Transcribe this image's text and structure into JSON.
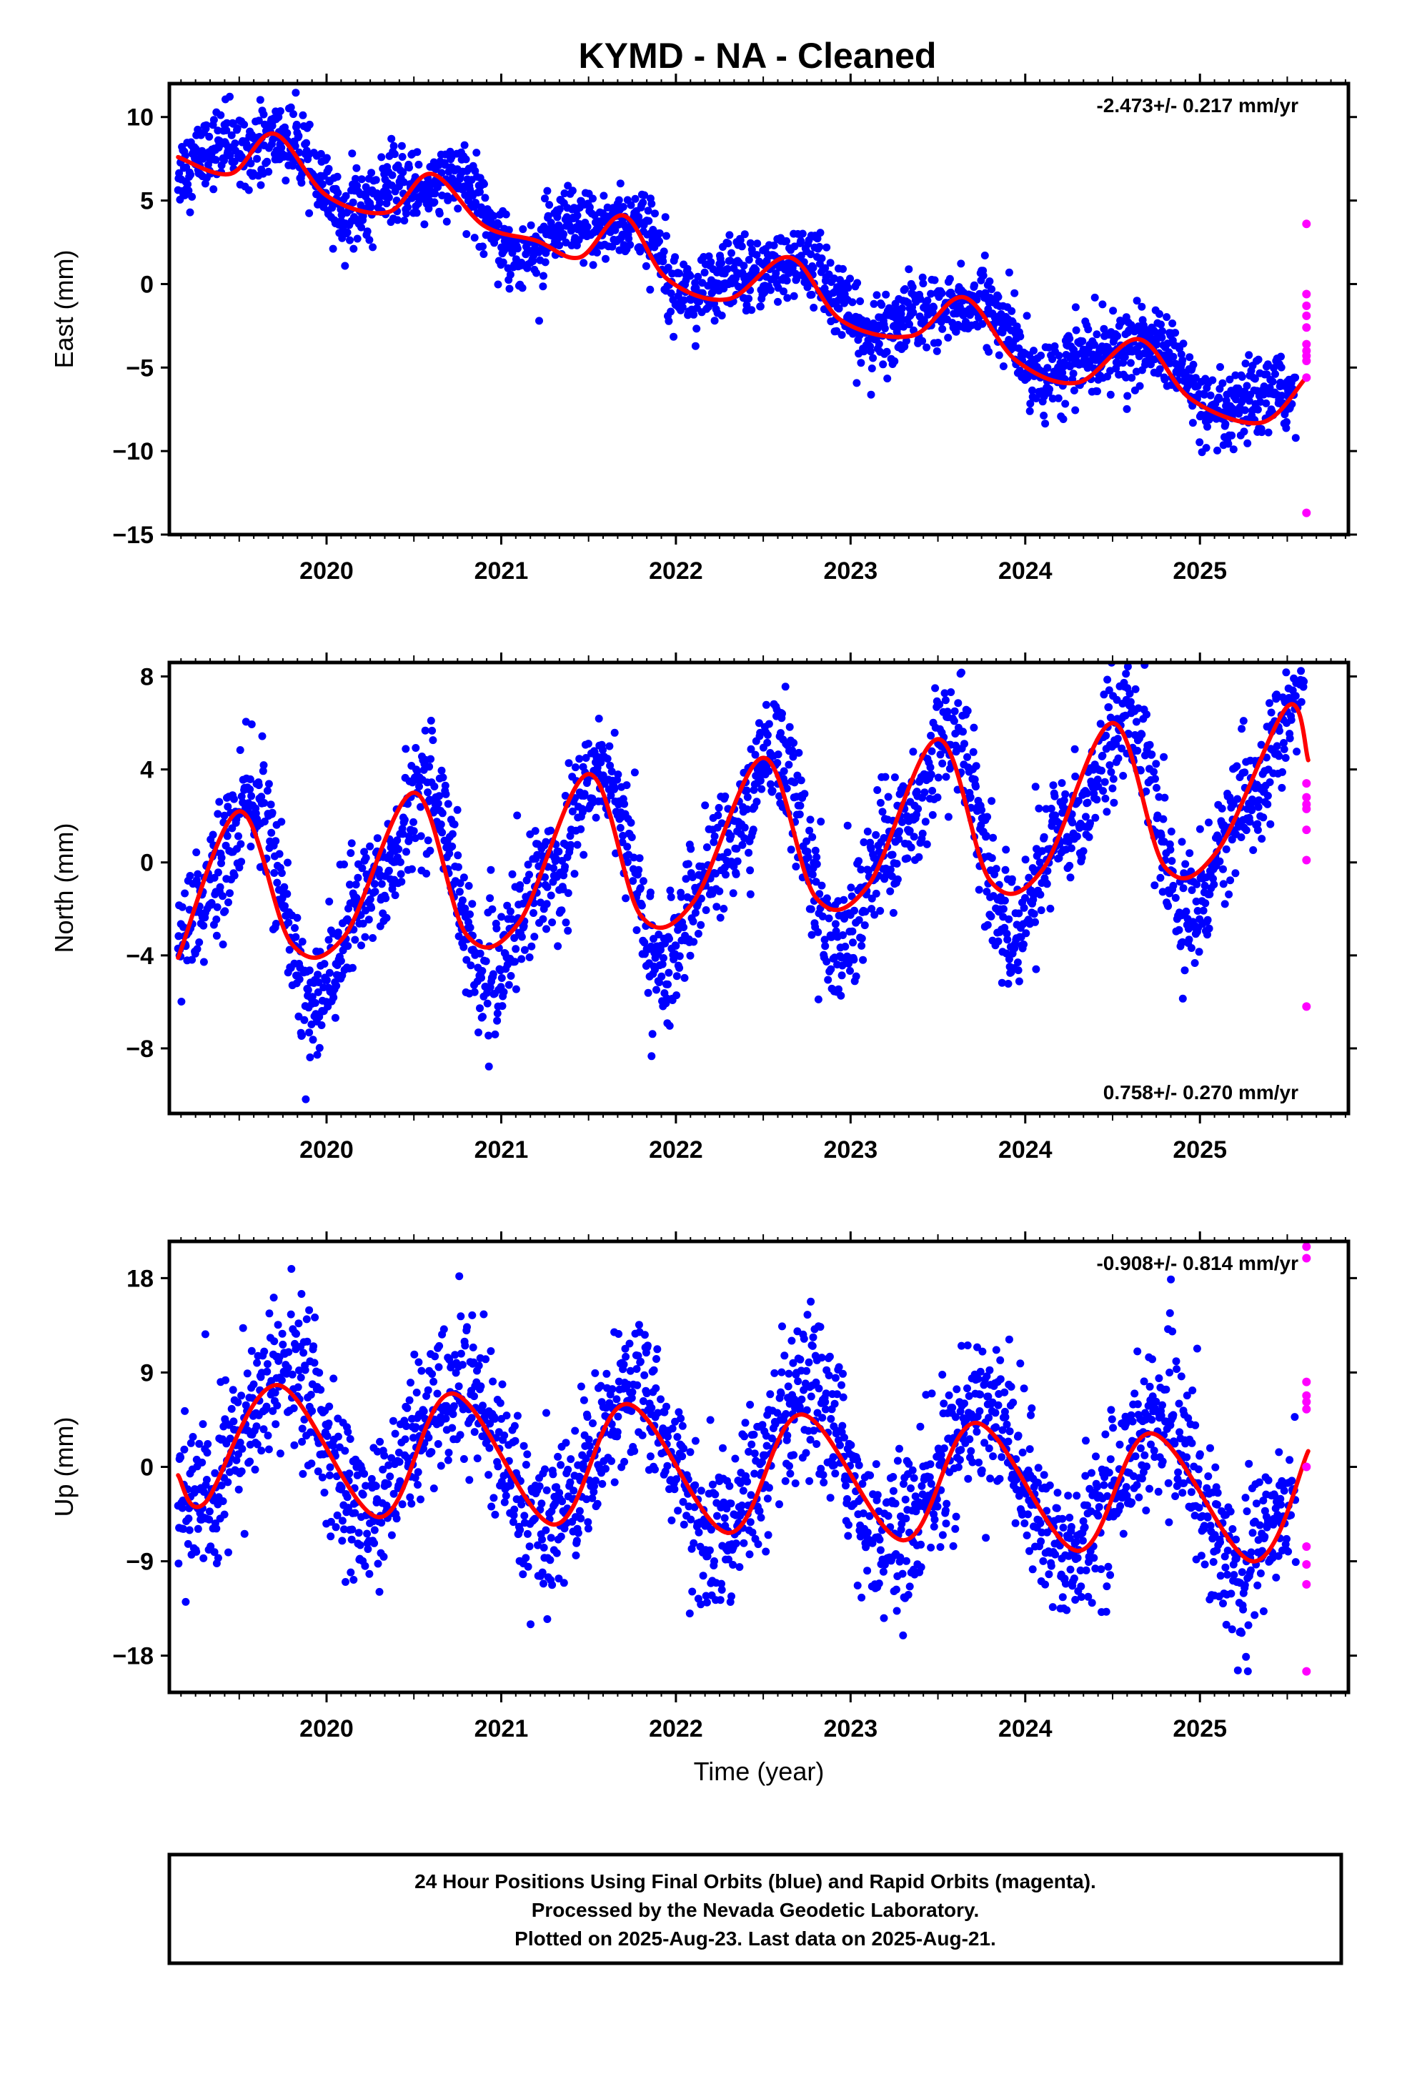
{
  "title": "KYMD  - NA - Cleaned",
  "footer": {
    "line1": "24 Hour Positions Using Final Orbits (blue) and Rapid Orbits (magenta).",
    "line2": "Processed by the Nevada Geodetic Laboratory.",
    "line3": "Plotted on 2025-Aug-23. Last data on 2025-Aug-21."
  },
  "colors": {
    "final": "#0000ff",
    "rapid": "#ff00ff",
    "fit": "#ff0000"
  },
  "chart_data": [
    {
      "type": "scatter",
      "panel": "east",
      "ylabel": "East (mm)",
      "xlabel": "",
      "rate_label": "-2.473+/- 0.217 mm/yr",
      "rate_position": "top-right",
      "xlim": [
        2019.1,
        2025.85
      ],
      "ylim": [
        -15,
        12
      ],
      "xticks": [
        "2020",
        "2021",
        "2022",
        "2023",
        "2024",
        "2025"
      ],
      "yticks": [
        10,
        5,
        0,
        -5,
        -10,
        -15
      ],
      "ytick_labels": [
        "10",
        "5",
        "0",
        "−5",
        "−10",
        "−15"
      ],
      "model": {
        "trend": -2.473,
        "ref_year": 2022.4,
        "offset": 0.55,
        "amp1": 1.5,
        "phase1": 2019.65,
        "amp2": 0.55,
        "phase2": 2019.7,
        "noise": 1.1
      },
      "series": [
        {
          "name": "Final Orbits",
          "color": "#0000ff",
          "x_range": [
            2019.15,
            2025.55
          ]
        },
        {
          "name": "Rapid Orbits",
          "color": "#ff00ff",
          "x": [
            2025.61,
            2025.61,
            2025.61,
            2025.61,
            2025.61,
            2025.61,
            2025.61,
            2025.61,
            2025.61,
            2025.61,
            2025.61
          ],
          "y": [
            3.6,
            -0.6,
            -1.3,
            -1.9,
            -2.6,
            -3.6,
            -4.0,
            -4.3,
            -4.6,
            -5.6,
            -13.7
          ]
        },
        {
          "name": "Fit",
          "color": "#ff0000",
          "x": [
            2019.15,
            2019.45,
            2019.7,
            2020.0,
            2020.35,
            2020.6,
            2020.9,
            2021.2,
            2021.45,
            2021.7,
            2021.95,
            2022.3,
            2022.65,
            2022.95,
            2023.35,
            2023.65,
            2023.95,
            2024.3,
            2024.65,
            2024.95,
            2025.35,
            2025.6
          ],
          "y": [
            7.6,
            6.6,
            9.0,
            5.3,
            4.3,
            6.6,
            3.5,
            2.6,
            1.6,
            4.1,
            0.3,
            -0.9,
            1.6,
            -2.2,
            -3.1,
            -0.8,
            -4.6,
            -5.9,
            -3.3,
            -6.9,
            -8.3,
            -5.7
          ]
        }
      ]
    },
    {
      "type": "scatter",
      "panel": "north",
      "ylabel": "North (mm)",
      "xlabel": "",
      "rate_label": "0.758+/- 0.270 mm/yr",
      "rate_position": "bottom-right",
      "xlim": [
        2019.1,
        2025.85
      ],
      "ylim": [
        -10.8,
        8.6
      ],
      "xticks": [
        "2020",
        "2021",
        "2022",
        "2023",
        "2024",
        "2025"
      ],
      "yticks": [
        8,
        4,
        0,
        -4,
        -8
      ],
      "ytick_labels": [
        "8",
        "4",
        "0",
        "−4",
        "−8"
      ],
      "model": {
        "trend": 0.758,
        "ref_year": 2022.4,
        "offset": 0.3,
        "amp1": 3.8,
        "phase1": 2019.5,
        "amp2": 1.4,
        "phase2": 2019.5,
        "noise": 1.3
      },
      "series": [
        {
          "name": "Final Orbits",
          "color": "#0000ff",
          "x_range": [
            2019.15,
            2025.6
          ]
        },
        {
          "name": "Rapid Orbits",
          "color": "#ff00ff",
          "x": [
            2025.61,
            2025.61,
            2025.61,
            2025.61,
            2025.61,
            2025.61,
            2025.61
          ],
          "y": [
            3.4,
            2.8,
            2.5,
            2.3,
            1.4,
            0.1,
            -6.2
          ]
        },
        {
          "name": "Fit",
          "color": "#ff0000",
          "x": [
            2019.15,
            2019.5,
            2019.8,
            2020.1,
            2020.5,
            2020.8,
            2021.1,
            2021.5,
            2021.8,
            2022.1,
            2022.5,
            2022.8,
            2023.1,
            2023.5,
            2023.8,
            2024.1,
            2024.5,
            2024.8,
            2025.1,
            2025.5,
            2025.62
          ],
          "y": [
            -4.1,
            2.2,
            -3.5,
            -3.2,
            3.0,
            -3.1,
            -2.6,
            3.8,
            -2.3,
            -1.7,
            4.5,
            -1.5,
            -1.0,
            5.3,
            -0.8,
            -0.3,
            6.0,
            -0.2,
            0.5,
            6.7,
            4.4
          ]
        }
      ]
    },
    {
      "type": "scatter",
      "panel": "up",
      "ylabel": "Up (mm)",
      "xlabel": "Time (year)",
      "rate_label": "-0.908+/- 0.814 mm/yr",
      "rate_position": "top-right",
      "xlim": [
        2019.1,
        2025.85
      ],
      "ylim": [
        -21.5,
        21.5
      ],
      "xticks": [
        "2020",
        "2021",
        "2022",
        "2023",
        "2024",
        "2025"
      ],
      "yticks": [
        18,
        9,
        0,
        -9,
        -18
      ],
      "ytick_labels": [
        "18",
        "9",
        "0",
        "−9",
        "−18"
      ],
      "model": {
        "trend": -0.908,
        "ref_year": 2022.4,
        "offset": 0.0,
        "amp1": 6.5,
        "phase1": 2019.75,
        "amp2": 0.8,
        "phase2": 2019.75,
        "noise": 3.6
      },
      "series": [
        {
          "name": "Final Orbits",
          "color": "#0000ff",
          "x_range": [
            2019.15,
            2025.55
          ]
        },
        {
          "name": "Rapid Orbits",
          "color": "#ff00ff",
          "x": [
            2025.61,
            2025.61,
            2025.61,
            2025.61,
            2025.61,
            2025.61,
            2025.61,
            2025.61,
            2025.61,
            2025.61,
            2025.61
          ],
          "y": [
            21.0,
            19.9,
            8.1,
            6.8,
            6.2,
            5.5,
            0.0,
            -7.6,
            -9.3,
            -11.2,
            -19.5
          ]
        },
        {
          "name": "Fit",
          "color": "#ff0000",
          "x": [
            2019.15,
            2019.3,
            2019.72,
            2020.3,
            2020.72,
            2021.3,
            2021.72,
            2022.3,
            2022.72,
            2023.3,
            2023.72,
            2024.3,
            2024.72,
            2025.3,
            2025.62
          ],
          "y": [
            -0.8,
            -3.5,
            7.8,
            -4.8,
            7.0,
            -5.5,
            6.0,
            -6.3,
            5.0,
            -7.0,
            4.2,
            -8.0,
            3.2,
            -9.0,
            1.5
          ]
        }
      ]
    }
  ]
}
